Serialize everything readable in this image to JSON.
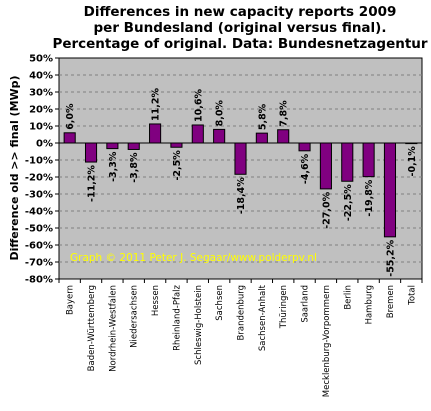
{
  "chart_data": {
    "type": "bar",
    "title_lines": [
      "Differences in new capacity reports 2009",
      "per Bundesland (original versus final).",
      "Percentage of original. Data: Bundesnetzagentur"
    ],
    "ylabel": "Difference old >> final (MWp)",
    "xlabel": "",
    "ylim": [
      -80,
      50
    ],
    "ytick_step": 10,
    "ytick_labels": [
      "50%",
      "40%",
      "30%",
      "20%",
      "10%",
      "0%",
      "-10%",
      "-20%",
      "-30%",
      "-40%",
      "-50%",
      "-60%",
      "-70%",
      "-80%"
    ],
    "grid": true,
    "categories": [
      "Bayern",
      "Baden-Württemberg",
      "Nordrhein-Westfalen",
      "Niedersachsen",
      "Hessen",
      "Rheinland-Pfalz",
      "Schleswig-Holstein",
      "Sachsen",
      "Brandenburg",
      "Sachsen-Anhalt",
      "Thüringen",
      "Saarland",
      "Mecklenburg-Vorpommern",
      "Berlin",
      "Hamburg",
      "Bremen",
      "Total"
    ],
    "values": [
      6.0,
      -11.2,
      -3.3,
      -3.8,
      11.2,
      -2.5,
      10.6,
      8.0,
      -18.4,
      5.8,
      7.8,
      -4.6,
      -27.0,
      -22.5,
      -19.8,
      -55.2,
      -0.1
    ],
    "data_labels": [
      "6,0%",
      "-11,2%",
      "-3,3%",
      "-3,8%",
      "11,2%",
      "-2,5%",
      "10,6%",
      "8,0%",
      "-18,4%",
      "5,8%",
      "7,8%",
      "-4,6%",
      "-27,0%",
      "-22,5%",
      "-19,8%",
      "-55,2%",
      "-0,1%"
    ],
    "annotation": "Graph © 2011 Peter J. Segaar/www.polderpv.nl",
    "colors": {
      "plot_bg": "#c0c0c0",
      "bar_fill": "#800080",
      "bar_stroke": "#000000",
      "grid": "#808080",
      "annotation": "#ffff00"
    }
  }
}
